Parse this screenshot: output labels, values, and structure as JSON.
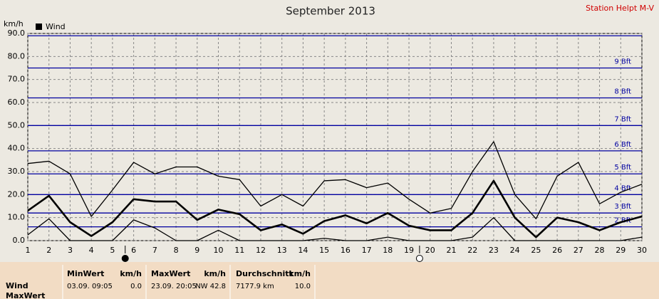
{
  "chart_data": {
    "type": "line",
    "title": "September 2013",
    "station": "Station Helpt M-V",
    "y_label": "km/h",
    "legend": "Wind",
    "x": [
      1,
      2,
      3,
      4,
      5,
      6,
      7,
      8,
      9,
      10,
      11,
      12,
      13,
      14,
      15,
      16,
      17,
      18,
      19,
      20,
      21,
      22,
      23,
      24,
      25,
      26,
      27,
      28,
      29,
      30
    ],
    "xlim": [
      1,
      30
    ],
    "series": [
      {
        "color": "#000000",
        "width": 1.3,
        "values": [
          33.5,
          34.5,
          29,
          10.5,
          22,
          34,
          29,
          32,
          32,
          28,
          26.5,
          15,
          20,
          15,
          26,
          26.5,
          23,
          25,
          18,
          12,
          14,
          30,
          43,
          20,
          9.5,
          28,
          34,
          16,
          21,
          24.5
        ]
      },
      {
        "color": "#000000",
        "width": 2.6,
        "values": [
          13,
          19.5,
          8,
          2,
          8,
          18,
          17,
          17,
          9,
          13.5,
          11.5,
          4.5,
          7,
          3,
          8.5,
          11,
          7.5,
          12,
          6.5,
          4.5,
          4.5,
          12,
          26,
          10,
          1.5,
          10,
          8,
          4.5,
          8,
          10.5
        ]
      },
      {
        "color": "#000000",
        "width": 1.3,
        "values": [
          2.5,
          9.5,
          0,
          0,
          0,
          9,
          5.5,
          0,
          0,
          4.5,
          0,
          0,
          0,
          0,
          1,
          0,
          0,
          1.5,
          0,
          0,
          0,
          1.5,
          10,
          0,
          0,
          0,
          0,
          0,
          0,
          1.5
        ]
      }
    ],
    "ylim": [
      0,
      90
    ],
    "yticks": [
      {
        "value": 0,
        "label": "0.0"
      },
      {
        "value": 10,
        "label": "10.0"
      },
      {
        "value": 20,
        "label": "20.0"
      },
      {
        "value": 30,
        "label": "30.0"
      },
      {
        "value": 40,
        "label": "40.0"
      },
      {
        "value": 50,
        "label": "50.0"
      },
      {
        "value": 60,
        "label": "60.0"
      },
      {
        "value": 70,
        "label": "70.0"
      },
      {
        "value": 80,
        "label": "80.0"
      },
      {
        "value": 90,
        "label": "90.0"
      }
    ],
    "grid": true,
    "beaufort": {
      "color": "#0000a0",
      "values": [
        6,
        12,
        20,
        29,
        39,
        50,
        62,
        75,
        89
      ],
      "labels": [
        "2 Bft",
        "3 Bft",
        "4 Bft",
        "5 Bft",
        "6 Bft",
        "7 Bft",
        "8 Bft",
        "9 Bft",
        null
      ]
    },
    "moon_markers": [
      {
        "x": 5.6,
        "filled": true
      },
      {
        "x": 19.5,
        "filled": false
      }
    ]
  },
  "table": {
    "row_label": "Wind",
    "next_row_label": "MaxWert",
    "columns": [
      {
        "title": "MinWert",
        "unit": "km/h",
        "when": "03.09.  09:05",
        "value": "0.0"
      },
      {
        "title": "MaxWert",
        "unit": "km/h",
        "when": "23.09.  20:05",
        "value": "NW 42.8"
      },
      {
        "title": "Durchschnitt",
        "unit": "km/h",
        "when": "7177.9 km",
        "value": "10.0"
      }
    ]
  }
}
